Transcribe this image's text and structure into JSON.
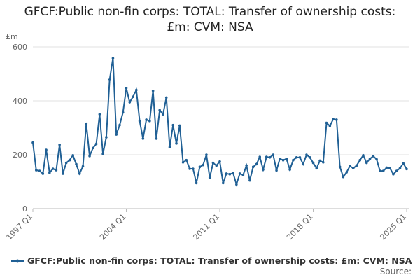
{
  "chart_data": {
    "type": "line",
    "title": "GFCF:Public non-fin corps: TOTAL: Transfer of ownership costs: £m: CVM: NSA",
    "y_unit": "£m",
    "source": "Source:",
    "categories": [
      "1997 Q1",
      null,
      null,
      null,
      null,
      null,
      null,
      null,
      null,
      null,
      null,
      null,
      null,
      null,
      null,
      null,
      null,
      null,
      null,
      null,
      null,
      null,
      null,
      null,
      null,
      null,
      null,
      null,
      "2004 Q1",
      null,
      null,
      null,
      null,
      null,
      null,
      null,
      null,
      null,
      null,
      null,
      null,
      null,
      null,
      null,
      null,
      null,
      null,
      null,
      null,
      null,
      null,
      null,
      null,
      null,
      null,
      null,
      "2011 Q1",
      null,
      null,
      null,
      null,
      null,
      null,
      null,
      null,
      null,
      null,
      null,
      null,
      null,
      null,
      null,
      null,
      null,
      null,
      null,
      null,
      null,
      null,
      null,
      null,
      null,
      null,
      null,
      "2018 Q1",
      null,
      null,
      null,
      null,
      null,
      null,
      null,
      null,
      null,
      null,
      null,
      null,
      null,
      null,
      null,
      null,
      null,
      null,
      null,
      null,
      null,
      null,
      null,
      null,
      null,
      null,
      null,
      "2025 Q1"
    ],
    "series": [
      {
        "name": "GFCF:Public non-fin corps: TOTAL: Transfer of ownership costs: £m: CVM: NSA",
        "color": "#206095",
        "values": [
          245,
          143,
          140,
          130,
          218,
          133,
          148,
          143,
          237,
          130,
          170,
          180,
          198,
          165,
          130,
          157,
          315,
          195,
          225,
          240,
          350,
          203,
          265,
          478,
          558,
          275,
          310,
          357,
          447,
          395,
          415,
          440,
          325,
          260,
          330,
          325,
          437,
          260,
          365,
          350,
          412,
          228,
          310,
          242,
          308,
          172,
          180,
          148,
          148,
          95,
          155,
          162,
          200,
          115,
          170,
          160,
          175,
          95,
          130,
          128,
          132,
          90,
          130,
          125,
          160,
          105,
          155,
          165,
          192,
          145,
          192,
          190,
          200,
          142,
          185,
          180,
          185,
          145,
          180,
          190,
          190,
          165,
          200,
          190,
          170,
          150,
          178,
          172,
          318,
          307,
          332,
          330,
          155,
          118,
          135,
          158,
          150,
          160,
          180,
          198,
          170,
          185,
          195,
          183,
          140,
          140,
          152,
          150,
          128,
          140,
          150,
          168,
          147
        ]
      }
    ],
    "ylim": [
      0,
      600
    ],
    "yticks": [
      0,
      200,
      400,
      600
    ],
    "grid": true,
    "legend": "bottom"
  }
}
